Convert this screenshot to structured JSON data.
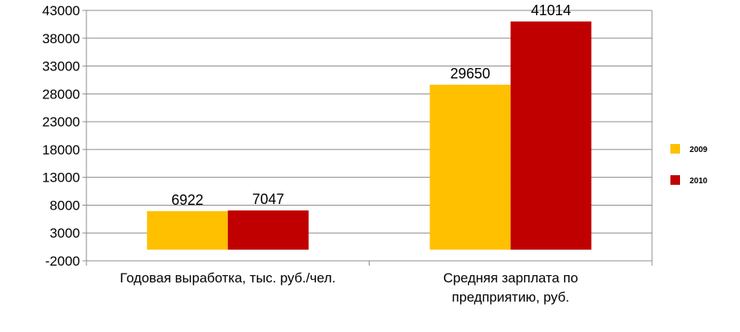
{
  "chart_data": {
    "type": "bar",
    "title": "",
    "xlabel": "",
    "ylabel": "",
    "categories": [
      [
        "Годовая выработка, тыс. руб./чел."
      ],
      [
        "Средняя зарплата по",
        "предприятию, руб."
      ]
    ],
    "series": [
      {
        "name": "2009",
        "color": "#FFC000",
        "values": [
          6922,
          29650
        ]
      },
      {
        "name": "2010",
        "color": "#C00000",
        "values": [
          7047,
          41014
        ]
      }
    ],
    "ylim": [
      -2000,
      43000
    ],
    "yticks": [
      -2000,
      3000,
      8000,
      13000,
      18000,
      23000,
      28000,
      33000,
      38000,
      43000
    ],
    "grid": true,
    "legend_position": "right"
  }
}
